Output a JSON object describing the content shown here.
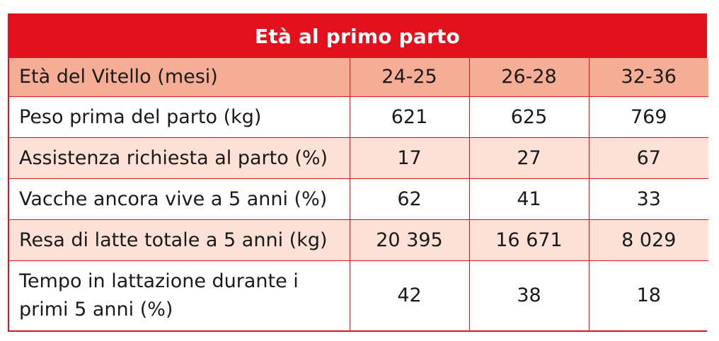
{
  "title": "Età al primo parto",
  "header": {
    "label": "Età del Vitello (mesi)",
    "columns": [
      "24-25",
      "26-28",
      "32-36"
    ]
  },
  "rows": [
    {
      "label": "Peso prima del parto (kg)",
      "values": [
        "621",
        "625",
        "769"
      ]
    },
    {
      "label": "Assistenza richiesta al parto (%)",
      "values": [
        "17",
        "27",
        "67"
      ]
    },
    {
      "label": "Vacche ancora vive a 5 anni (%)",
      "values": [
        "62",
        "41",
        "33"
      ]
    },
    {
      "label": "Resa di latte totale a 5 anni (kg)",
      "values": [
        "20 395",
        "16 671",
        "8 029"
      ]
    },
    {
      "label": "Tempo in lattazione durante i primi 5 anni (%)",
      "values": [
        "42",
        "38",
        "18"
      ]
    }
  ],
  "colors": {
    "accent_red": "#e3101d",
    "header_row_fill": "#f5ad96",
    "stripe_fill": "#fde0d6"
  }
}
